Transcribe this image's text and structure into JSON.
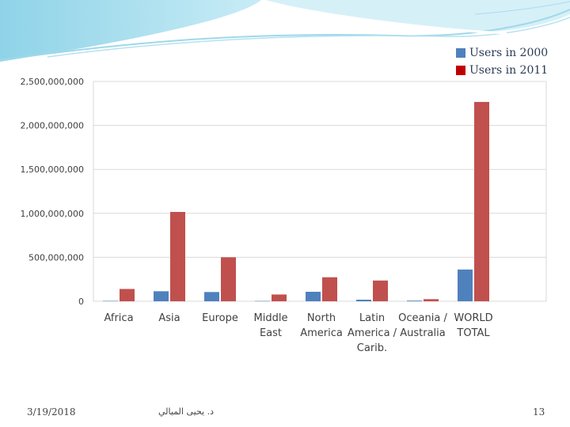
{
  "colors": {
    "series_2000": "#4f81bd",
    "series_2011": "#c0504d"
  },
  "chart_data": {
    "type": "bar",
    "categories": [
      [
        "Africa"
      ],
      [
        "Asia"
      ],
      [
        "Europe"
      ],
      [
        "Middle",
        "East"
      ],
      [
        "North",
        "America"
      ],
      [
        "Latin",
        "America /",
        "Carib."
      ],
      [
        "Oceania /",
        "Australia"
      ],
      [
        "WORLD",
        "TOTAL"
      ]
    ],
    "series": [
      {
        "name": "Users in 2000",
        "values": [
          4500000,
          114000000,
          105000000,
          3300000,
          108000000,
          18000000,
          7600000,
          361000000
        ]
      },
      {
        "name": "Users in 2011",
        "values": [
          140000000,
          1016000000,
          500000000,
          77000000,
          273000000,
          236000000,
          24000000,
          2267000000
        ]
      }
    ],
    "ylim": [
      0,
      2500000000
    ],
    "yticks": [
      "0",
      "500,000,000",
      "1,000,000,000",
      "1,500,000,000",
      "2,000,000,000",
      "2,500,000,000"
    ],
    "grid": true,
    "legend": "top-right"
  },
  "footer": {
    "date": "3/19/2018",
    "author": "د. يحيى الميالي",
    "page": "13"
  }
}
